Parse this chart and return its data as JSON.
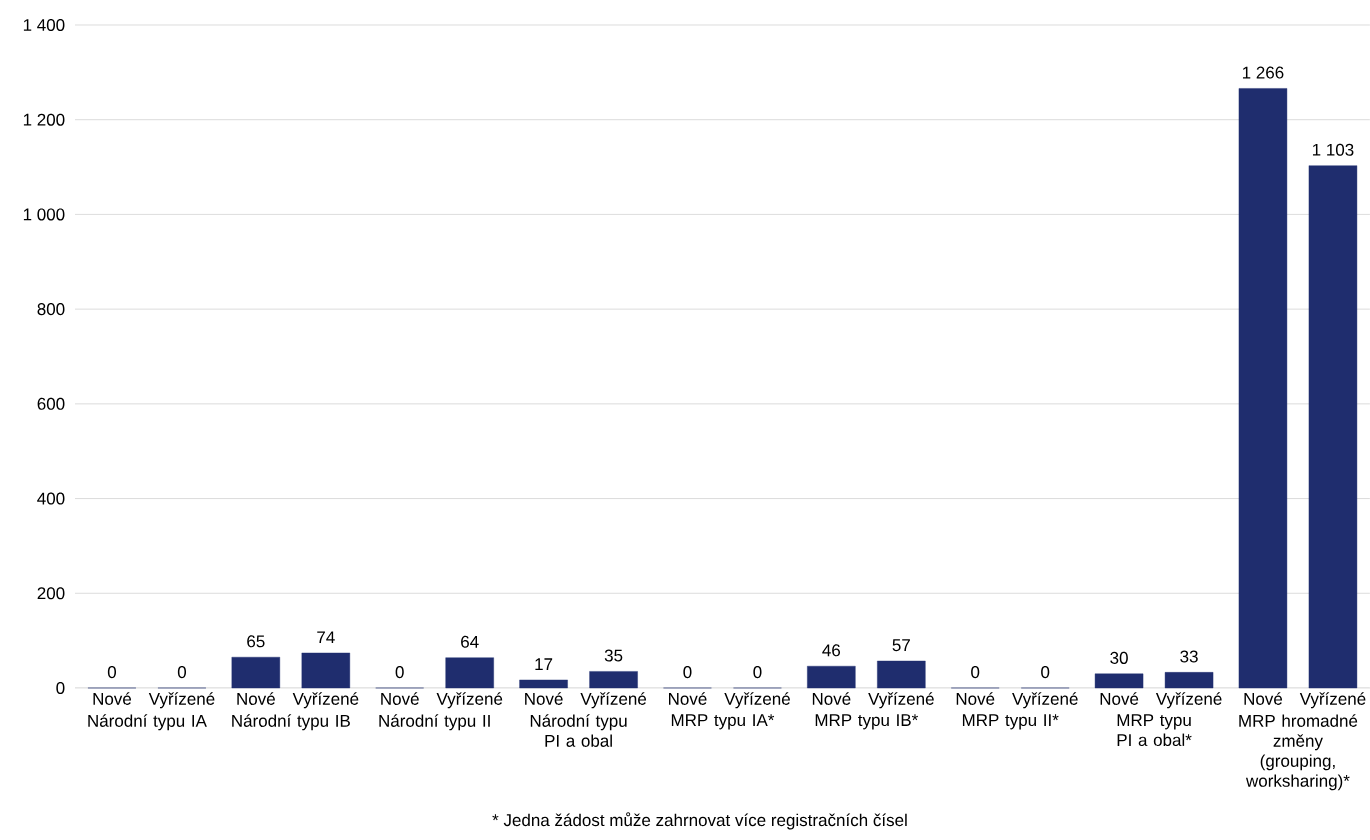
{
  "chart_data": {
    "type": "bar",
    "categories": [
      "Národní typu IA",
      "Národní typu IB",
      "Národní typu II",
      "Národní typu PI a obal",
      "MRP typu IA*",
      "MRP typu IB*",
      "MRP typu II*",
      "MRP typu PI a obal*",
      "MRP hromadné změny (grouping, worksharing)*"
    ],
    "series": [
      {
        "name": "Nové",
        "color": "#1f2d6e",
        "values": [
          0,
          65,
          0,
          17,
          0,
          46,
          0,
          30,
          1266
        ],
        "value_labels": [
          "0",
          "65",
          "0",
          "17",
          "0",
          "46",
          "0",
          "30",
          "1 266"
        ]
      },
      {
        "name": "Vyřízené",
        "color": "#1f2d6e",
        "values": [
          0,
          74,
          64,
          35,
          0,
          57,
          0,
          33,
          1103
        ],
        "value_labels": [
          "0",
          "74",
          "64",
          "35",
          "0",
          "57",
          "0",
          "33",
          "1 103"
        ]
      }
    ],
    "ylim": [
      0,
      1400
    ],
    "yticks": [
      0,
      200,
      400,
      600,
      800,
      {
        "value": 1000,
        "label": "1 000"
      },
      {
        "value": 1200,
        "label": "1 200"
      },
      {
        "value": 1400,
        "label": "1 400"
      }
    ],
    "grid": "y",
    "annotations": [
      "* Jedna žádost může zahrnovat více registračních čísel"
    ]
  }
}
